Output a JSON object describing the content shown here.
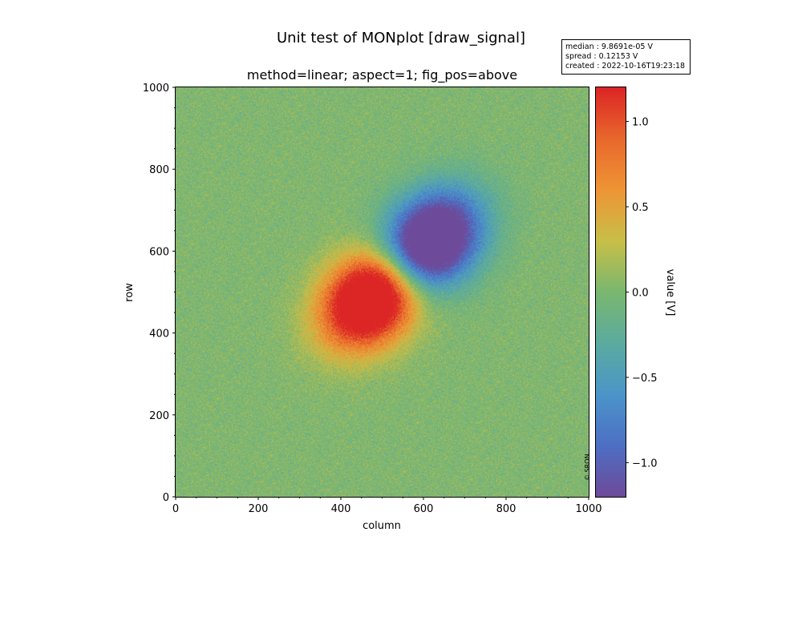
{
  "figure": {
    "suptitle": "Unit test of MONplot [draw_signal]",
    "axes_title": "method=linear; aspect=1; fig_pos=above",
    "info_box": {
      "median": "median : 9.8691e-05 V",
      "spread": "spread : 0.12153 V",
      "created": "created : 2022-10-16T19:23:18"
    },
    "copyright": "© SRON"
  },
  "chart_data": {
    "type": "heatmap",
    "title": "method=linear; aspect=1; fig_pos=above",
    "xlabel": "column",
    "ylabel": "row",
    "xlim": [
      0,
      1000
    ],
    "ylim": [
      0,
      1000
    ],
    "x_ticks": [
      "0",
      "200",
      "400",
      "600",
      "800",
      "1000"
    ],
    "y_ticks": [
      "0",
      "200",
      "400",
      "600",
      "800",
      "1000"
    ],
    "x_tick_values": [
      0,
      200,
      400,
      600,
      800,
      1000
    ],
    "y_tick_values": [
      0,
      200,
      400,
      600,
      800,
      1000
    ],
    "features": [
      {
        "shape": "ellipse",
        "center_column": 480,
        "center_row": 490,
        "peak_value": 1.2
      },
      {
        "shape": "ellipse",
        "center_column": 610,
        "center_row": 615,
        "peak_value": -1.2
      }
    ],
    "background_value": 0.0,
    "noise_spread": 0.12153,
    "colorbar": {
      "label": "value [V]",
      "vmin": -1.2,
      "vmax": 1.2,
      "ticks": [
        "−1.0",
        "−0.5",
        "0.0",
        "0.5",
        "1.0"
      ],
      "tick_values": [
        -1.0,
        -0.5,
        0.0,
        0.5,
        1.0
      ],
      "colormap": [
        "#6e4a9a",
        "#4d6fc4",
        "#4b95c9",
        "#5bab9f",
        "#7ab76f",
        "#c8bf48",
        "#ee9535",
        "#e8682c",
        "#dc2525"
      ]
    }
  }
}
